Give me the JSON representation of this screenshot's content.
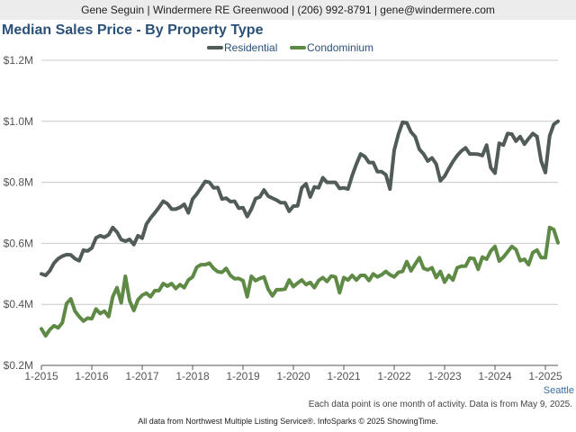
{
  "header": {
    "contact": "Gene Seguin | Windermere RE Greenwood | (206) 992-8791 | gene@windermere.com"
  },
  "region_label": "Seattle",
  "note": "Each data point is one month of activity. Data is from May 9, 2025.",
  "footer": "All data from Northwest Multiple Listing Service®. InfoSparks © 2025 ShowingTime.",
  "chart_data": {
    "type": "line",
    "title": "Median Sales Price - By Property Type",
    "legend_position": "top-center",
    "grid": true,
    "ylim": [
      200000,
      1200000
    ],
    "yticks": [
      {
        "value": 200000,
        "label": "$0.2M"
      },
      {
        "value": 400000,
        "label": "$0.4M"
      },
      {
        "value": 600000,
        "label": "$0.6M"
      },
      {
        "value": 800000,
        "label": "$0.8M"
      },
      {
        "value": 1000000,
        "label": "$1.0M"
      },
      {
        "value": 1200000,
        "label": "$1.2M"
      }
    ],
    "xlim": [
      "2015-01",
      "2025-04"
    ],
    "xticks": [
      "1-2015",
      "1-2016",
      "1-2017",
      "1-2018",
      "1-2019",
      "1-2020",
      "1-2021",
      "1-2022",
      "1-2023",
      "1-2024",
      "1-2025"
    ],
    "series": [
      {
        "name": "Residential",
        "color": "#515b57",
        "points": [
          [
            "2015-01",
            500000
          ],
          [
            "2015-02",
            495000
          ],
          [
            "2015-03",
            510000
          ],
          [
            "2015-04",
            535000
          ],
          [
            "2015-05",
            550000
          ],
          [
            "2015-06",
            558000
          ],
          [
            "2015-07",
            563000
          ],
          [
            "2015-08",
            562000
          ],
          [
            "2015-09",
            550000
          ],
          [
            "2015-10",
            543000
          ],
          [
            "2015-11",
            578000
          ],
          [
            "2015-12",
            575000
          ],
          [
            "2016-01",
            585000
          ],
          [
            "2016-02",
            618000
          ],
          [
            "2016-03",
            625000
          ],
          [
            "2016-04",
            620000
          ],
          [
            "2016-05",
            628000
          ],
          [
            "2016-06",
            652000
          ],
          [
            "2016-07",
            637000
          ],
          [
            "2016-08",
            612000
          ],
          [
            "2016-09",
            607000
          ],
          [
            "2016-10",
            613000
          ],
          [
            "2016-11",
            596000
          ],
          [
            "2016-12",
            625000
          ],
          [
            "2017-01",
            617000
          ],
          [
            "2017-02",
            663000
          ],
          [
            "2017-03",
            683000
          ],
          [
            "2017-04",
            700000
          ],
          [
            "2017-05",
            718000
          ],
          [
            "2017-06",
            738000
          ],
          [
            "2017-07",
            730000
          ],
          [
            "2017-08",
            712000
          ],
          [
            "2017-09",
            712000
          ],
          [
            "2017-10",
            718000
          ],
          [
            "2017-11",
            728000
          ],
          [
            "2017-12",
            700000
          ],
          [
            "2018-01",
            745000
          ],
          [
            "2018-02",
            762000
          ],
          [
            "2018-03",
            782000
          ],
          [
            "2018-04",
            803000
          ],
          [
            "2018-05",
            800000
          ],
          [
            "2018-06",
            782000
          ],
          [
            "2018-07",
            783000
          ],
          [
            "2018-08",
            745000
          ],
          [
            "2018-09",
            748000
          ],
          [
            "2018-10",
            737000
          ],
          [
            "2018-11",
            738000
          ],
          [
            "2018-12",
            715000
          ],
          [
            "2019-01",
            717000
          ],
          [
            "2019-02",
            688000
          ],
          [
            "2019-03",
            712000
          ],
          [
            "2019-04",
            747000
          ],
          [
            "2019-05",
            752000
          ],
          [
            "2019-06",
            775000
          ],
          [
            "2019-07",
            755000
          ],
          [
            "2019-08",
            748000
          ],
          [
            "2019-09",
            742000
          ],
          [
            "2019-10",
            733000
          ],
          [
            "2019-11",
            733000
          ],
          [
            "2019-12",
            705000
          ],
          [
            "2020-01",
            722000
          ],
          [
            "2020-02",
            723000
          ],
          [
            "2020-03",
            782000
          ],
          [
            "2020-04",
            795000
          ],
          [
            "2020-05",
            752000
          ],
          [
            "2020-06",
            785000
          ],
          [
            "2020-07",
            782000
          ],
          [
            "2020-08",
            815000
          ],
          [
            "2020-09",
            800000
          ],
          [
            "2020-10",
            800000
          ],
          [
            "2020-11",
            800000
          ],
          [
            "2020-12",
            780000
          ],
          [
            "2021-01",
            782000
          ],
          [
            "2021-02",
            778000
          ],
          [
            "2021-03",
            822000
          ],
          [
            "2021-04",
            860000
          ],
          [
            "2021-05",
            893000
          ],
          [
            "2021-06",
            885000
          ],
          [
            "2021-07",
            865000
          ],
          [
            "2021-08",
            865000
          ],
          [
            "2021-09",
            835000
          ],
          [
            "2021-10",
            835000
          ],
          [
            "2021-11",
            825000
          ],
          [
            "2021-12",
            778000
          ],
          [
            "2022-01",
            905000
          ],
          [
            "2022-02",
            958000
          ],
          [
            "2022-03",
            997000
          ],
          [
            "2022-04",
            995000
          ],
          [
            "2022-05",
            965000
          ],
          [
            "2022-06",
            950000
          ],
          [
            "2022-07",
            908000
          ],
          [
            "2022-08",
            893000
          ],
          [
            "2022-09",
            870000
          ],
          [
            "2022-10",
            880000
          ],
          [
            "2022-11",
            860000
          ],
          [
            "2022-12",
            805000
          ],
          [
            "2023-01",
            820000
          ],
          [
            "2023-02",
            845000
          ],
          [
            "2023-03",
            868000
          ],
          [
            "2023-04",
            888000
          ],
          [
            "2023-05",
            903000
          ],
          [
            "2023-06",
            913000
          ],
          [
            "2023-07",
            893000
          ],
          [
            "2023-08",
            893000
          ],
          [
            "2023-09",
            892000
          ],
          [
            "2023-10",
            888000
          ],
          [
            "2023-11",
            922000
          ],
          [
            "2023-12",
            848000
          ],
          [
            "2024-01",
            830000
          ],
          [
            "2024-02",
            928000
          ],
          [
            "2024-03",
            922000
          ],
          [
            "2024-04",
            960000
          ],
          [
            "2024-05",
            958000
          ],
          [
            "2024-06",
            935000
          ],
          [
            "2024-07",
            950000
          ],
          [
            "2024-08",
            925000
          ],
          [
            "2024-09",
            943000
          ],
          [
            "2024-10",
            960000
          ],
          [
            "2024-11",
            950000
          ],
          [
            "2024-12",
            870000
          ],
          [
            "2025-01",
            832000
          ],
          [
            "2025-02",
            952000
          ],
          [
            "2025-03",
            990000
          ],
          [
            "2025-04",
            1000000
          ]
        ]
      },
      {
        "name": "Condominium",
        "color": "#5e8a45",
        "points": [
          [
            "2015-01",
            320000
          ],
          [
            "2015-02",
            297000
          ],
          [
            "2015-03",
            317000
          ],
          [
            "2015-04",
            330000
          ],
          [
            "2015-05",
            323000
          ],
          [
            "2015-06",
            340000
          ],
          [
            "2015-07",
            403000
          ],
          [
            "2015-08",
            418000
          ],
          [
            "2015-09",
            378000
          ],
          [
            "2015-10",
            360000
          ],
          [
            "2015-11",
            345000
          ],
          [
            "2015-12",
            355000
          ],
          [
            "2016-01",
            353000
          ],
          [
            "2016-02",
            385000
          ],
          [
            "2016-03",
            370000
          ],
          [
            "2016-04",
            378000
          ],
          [
            "2016-05",
            360000
          ],
          [
            "2016-06",
            425000
          ],
          [
            "2016-07",
            455000
          ],
          [
            "2016-08",
            405000
          ],
          [
            "2016-09",
            492000
          ],
          [
            "2016-10",
            412000
          ],
          [
            "2016-11",
            380000
          ],
          [
            "2016-12",
            415000
          ],
          [
            "2017-01",
            430000
          ],
          [
            "2017-02",
            437000
          ],
          [
            "2017-03",
            425000
          ],
          [
            "2017-04",
            445000
          ],
          [
            "2017-05",
            445000
          ],
          [
            "2017-06",
            468000
          ],
          [
            "2017-07",
            460000
          ],
          [
            "2017-08",
            468000
          ],
          [
            "2017-09",
            452000
          ],
          [
            "2017-10",
            465000
          ],
          [
            "2017-11",
            455000
          ],
          [
            "2017-12",
            480000
          ],
          [
            "2018-01",
            490000
          ],
          [
            "2018-02",
            522000
          ],
          [
            "2018-03",
            530000
          ],
          [
            "2018-04",
            530000
          ],
          [
            "2018-05",
            535000
          ],
          [
            "2018-06",
            518000
          ],
          [
            "2018-07",
            507000
          ],
          [
            "2018-08",
            505000
          ],
          [
            "2018-09",
            518000
          ],
          [
            "2018-10",
            495000
          ],
          [
            "2018-11",
            484000
          ],
          [
            "2018-12",
            485000
          ],
          [
            "2019-01",
            478000
          ],
          [
            "2019-02",
            425000
          ],
          [
            "2019-03",
            492000
          ],
          [
            "2019-04",
            478000
          ],
          [
            "2019-05",
            485000
          ],
          [
            "2019-06",
            490000
          ],
          [
            "2019-07",
            450000
          ],
          [
            "2019-08",
            428000
          ],
          [
            "2019-09",
            448000
          ],
          [
            "2019-10",
            448000
          ],
          [
            "2019-11",
            450000
          ],
          [
            "2019-12",
            480000
          ],
          [
            "2020-01",
            458000
          ],
          [
            "2020-02",
            470000
          ],
          [
            "2020-03",
            480000
          ],
          [
            "2020-04",
            465000
          ],
          [
            "2020-05",
            472000
          ],
          [
            "2020-06",
            455000
          ],
          [
            "2020-07",
            478000
          ],
          [
            "2020-08",
            488000
          ],
          [
            "2020-09",
            475000
          ],
          [
            "2020-10",
            493000
          ],
          [
            "2020-11",
            490000
          ],
          [
            "2020-12",
            438000
          ],
          [
            "2021-01",
            488000
          ],
          [
            "2021-02",
            480000
          ],
          [
            "2021-03",
            495000
          ],
          [
            "2021-04",
            480000
          ],
          [
            "2021-05",
            495000
          ],
          [
            "2021-06",
            495000
          ],
          [
            "2021-07",
            478000
          ],
          [
            "2021-08",
            500000
          ],
          [
            "2021-09",
            490000
          ],
          [
            "2021-10",
            497000
          ],
          [
            "2021-11",
            508000
          ],
          [
            "2021-12",
            497000
          ],
          [
            "2022-01",
            490000
          ],
          [
            "2022-02",
            505000
          ],
          [
            "2022-03",
            508000
          ],
          [
            "2022-04",
            540000
          ],
          [
            "2022-05",
            510000
          ],
          [
            "2022-06",
            532000
          ],
          [
            "2022-07",
            553000
          ],
          [
            "2022-08",
            518000
          ],
          [
            "2022-09",
            513000
          ],
          [
            "2022-10",
            520000
          ],
          [
            "2022-11",
            488000
          ],
          [
            "2022-12",
            508000
          ],
          [
            "2023-01",
            473000
          ],
          [
            "2023-02",
            495000
          ],
          [
            "2023-03",
            480000
          ],
          [
            "2023-04",
            520000
          ],
          [
            "2023-05",
            525000
          ],
          [
            "2023-06",
            525000
          ],
          [
            "2023-07",
            552000
          ],
          [
            "2023-08",
            550000
          ],
          [
            "2023-09",
            515000
          ],
          [
            "2023-10",
            555000
          ],
          [
            "2023-11",
            548000
          ],
          [
            "2023-12",
            575000
          ],
          [
            "2024-01",
            590000
          ],
          [
            "2024-02",
            542000
          ],
          [
            "2024-03",
            555000
          ],
          [
            "2024-04",
            572000
          ],
          [
            "2024-05",
            590000
          ],
          [
            "2024-06",
            580000
          ],
          [
            "2024-07",
            543000
          ],
          [
            "2024-08",
            548000
          ],
          [
            "2024-09",
            530000
          ],
          [
            "2024-10",
            570000
          ],
          [
            "2024-11",
            578000
          ],
          [
            "2024-12",
            553000
          ],
          [
            "2025-01",
            553000
          ],
          [
            "2025-02",
            652000
          ],
          [
            "2025-03",
            645000
          ],
          [
            "2025-04",
            602000
          ]
        ]
      }
    ]
  }
}
